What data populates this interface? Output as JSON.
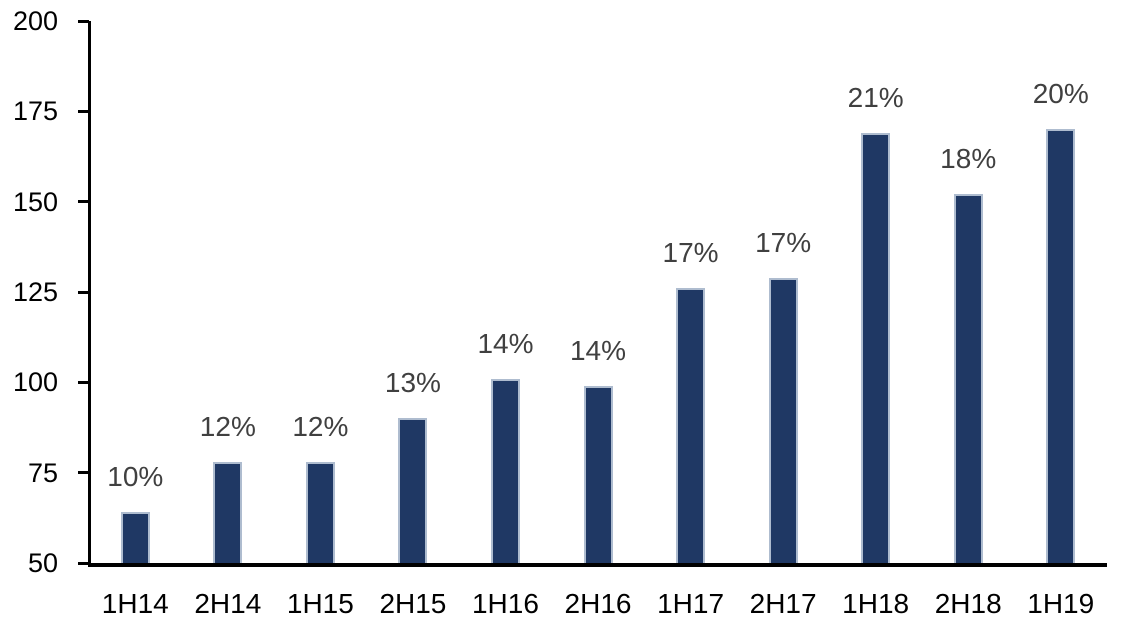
{
  "chart_data": {
    "type": "bar",
    "title": "",
    "xlabel": "",
    "ylabel": "",
    "categories": [
      "1H14",
      "2H14",
      "1H15",
      "2H15",
      "1H16",
      "2H16",
      "1H17",
      "2H17",
      "1H18",
      "2H18",
      "1H19"
    ],
    "values": [
      64,
      78,
      78,
      90,
      101,
      99,
      126,
      129,
      169,
      152,
      170
    ],
    "bar_labels": [
      "10%",
      "12%",
      "12%",
      "13%",
      "14%",
      "14%",
      "17%",
      "17%",
      "21%",
      "18%",
      "20%"
    ],
    "ylim": [
      50,
      200
    ],
    "yticks": [
      50,
      75,
      100,
      125,
      150,
      175,
      200
    ],
    "ytick_interval": 25,
    "grid": false,
    "legend": false,
    "colors": {
      "bar_fill": "#1f3864",
      "bar_border": "#aebccf",
      "data_label": "#404040",
      "axis": "#000000",
      "background": "#ffffff"
    }
  }
}
